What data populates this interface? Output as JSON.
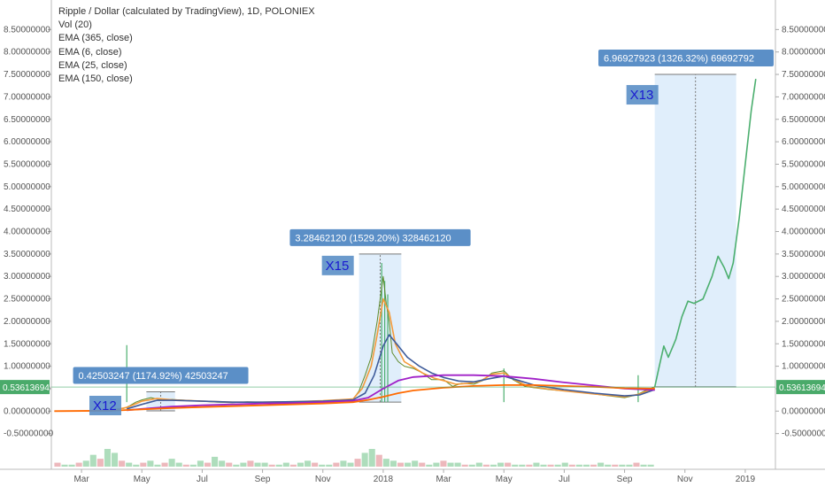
{
  "legend": {
    "title": "Ripple / Dollar (calculated by TradingView), 1D, POLONIEX",
    "lines": [
      "Vol (20)",
      "EMA (365, close)",
      "EMA (6, close)",
      "EMA (25, close)",
      "EMA (150, close)"
    ]
  },
  "colors": {
    "price": "#5e8a2a",
    "ema6": "#f49a3a",
    "ema25": "#3e5b9a",
    "ema150": "#a020c8",
    "ema365": "#ff6a00",
    "projection": "#4caf6f",
    "range_fill": "#d6e8fa",
    "callout_bg": "#5b8fc7",
    "label_bg": "#5b8fc7",
    "price_badge": "#4aaa6a"
  },
  "chart_data": {
    "type": "line",
    "ylim": [
      -1.0,
      9.0
    ],
    "y_ticks": [
      -0.5,
      0.0,
      0.5,
      1.0,
      1.5,
      2.0,
      2.5,
      3.0,
      3.5,
      4.0,
      4.5,
      5.0,
      5.5,
      6.0,
      6.5,
      7.0,
      7.5,
      8.0,
      8.5
    ],
    "y_tick_labels": [
      "-0.50000000",
      "0.00000000",
      "0.50000000",
      "1.00000000",
      "1.50000000",
      "2.00000000",
      "2.50000000",
      "3.00000000",
      "3.50000000",
      "4.00000000",
      "4.50000000",
      "5.00000000",
      "5.50000000",
      "6.00000000",
      "6.50000000",
      "7.00000000",
      "7.50000000",
      "8.00000000",
      "8.50000000"
    ],
    "x_ticks": [
      {
        "label": "Mar",
        "t": 0.0
      },
      {
        "label": "May",
        "t": 2.0
      },
      {
        "label": "Jul",
        "t": 4.0
      },
      {
        "label": "Sep",
        "t": 6.0
      },
      {
        "label": "Nov",
        "t": 8.0
      },
      {
        "label": "2018",
        "t": 10.0
      },
      {
        "label": "Mar",
        "t": 12.0
      },
      {
        "label": "May",
        "t": 14.0
      },
      {
        "label": "Jul",
        "t": 16.0
      },
      {
        "label": "Sep",
        "t": 18.0
      },
      {
        "label": "Nov",
        "t": 20.0
      },
      {
        "label": "2019",
        "t": 22.0
      }
    ],
    "xlim": [
      -1.0,
      23.0
    ],
    "last_price": 0.53613694,
    "last_price_label": "0.53613694",
    "series": [
      {
        "key": "price",
        "points": [
          [
            -0.9,
            0.0
          ],
          [
            0.5,
            0.005
          ],
          [
            0.9,
            0.01
          ],
          [
            1.0,
            0.02
          ],
          [
            1.2,
            0.05
          ],
          [
            1.4,
            0.06
          ],
          [
            1.6,
            0.12
          ],
          [
            1.8,
            0.2
          ],
          [
            2.0,
            0.25
          ],
          [
            2.3,
            0.3
          ],
          [
            2.7,
            0.24
          ],
          [
            3.0,
            0.26
          ],
          [
            3.5,
            0.24
          ],
          [
            4.0,
            0.22
          ],
          [
            4.5,
            0.2
          ],
          [
            5.0,
            0.19
          ],
          [
            5.5,
            0.21
          ],
          [
            6.0,
            0.2
          ],
          [
            6.5,
            0.21
          ],
          [
            7.0,
            0.2
          ],
          [
            7.5,
            0.22
          ],
          [
            8.0,
            0.23
          ],
          [
            8.5,
            0.24
          ],
          [
            9.0,
            0.26
          ],
          [
            9.2,
            0.45
          ],
          [
            9.4,
            0.8
          ],
          [
            9.6,
            1.2
          ],
          [
            9.8,
            2.0
          ],
          [
            9.9,
            2.5
          ],
          [
            10.0,
            3.0
          ],
          [
            10.1,
            2.4
          ],
          [
            10.2,
            2.0
          ],
          [
            10.3,
            1.3
          ],
          [
            10.5,
            1.1
          ],
          [
            10.7,
            1.0
          ],
          [
            11.0,
            0.95
          ],
          [
            11.3,
            0.85
          ],
          [
            11.6,
            0.7
          ],
          [
            12.0,
            0.7
          ],
          [
            12.3,
            0.55
          ],
          [
            12.6,
            0.62
          ],
          [
            13.0,
            0.6
          ],
          [
            13.3,
            0.68
          ],
          [
            13.6,
            0.85
          ],
          [
            14.0,
            0.9
          ],
          [
            14.3,
            0.7
          ],
          [
            14.7,
            0.55
          ],
          [
            15.0,
            0.52
          ],
          [
            15.5,
            0.48
          ],
          [
            16.0,
            0.45
          ],
          [
            16.5,
            0.42
          ],
          [
            17.0,
            0.38
          ],
          [
            17.5,
            0.34
          ],
          [
            18.0,
            0.3
          ],
          [
            18.4,
            0.36
          ],
          [
            18.7,
            0.46
          ],
          [
            19.0,
            0.54
          ]
        ]
      },
      {
        "key": "ema6",
        "points": [
          [
            1.0,
            0.02
          ],
          [
            1.5,
            0.08
          ],
          [
            2.0,
            0.22
          ],
          [
            2.5,
            0.28
          ],
          [
            3.0,
            0.25
          ],
          [
            4.0,
            0.22
          ],
          [
            5.0,
            0.2
          ],
          [
            6.0,
            0.2
          ],
          [
            7.0,
            0.21
          ],
          [
            8.0,
            0.23
          ],
          [
            9.0,
            0.27
          ],
          [
            9.3,
            0.5
          ],
          [
            9.6,
            1.0
          ],
          [
            9.8,
            1.7
          ],
          [
            10.0,
            2.5
          ],
          [
            10.2,
            2.2
          ],
          [
            10.4,
            1.5
          ],
          [
            10.7,
            1.1
          ],
          [
            11.0,
            0.98
          ],
          [
            11.3,
            0.85
          ],
          [
            11.7,
            0.73
          ],
          [
            12.0,
            0.68
          ],
          [
            12.4,
            0.6
          ],
          [
            12.8,
            0.62
          ],
          [
            13.2,
            0.66
          ],
          [
            13.6,
            0.82
          ],
          [
            14.0,
            0.85
          ],
          [
            14.4,
            0.68
          ],
          [
            14.8,
            0.55
          ],
          [
            15.5,
            0.49
          ],
          [
            16.0,
            0.45
          ],
          [
            17.0,
            0.38
          ],
          [
            18.0,
            0.32
          ],
          [
            18.5,
            0.38
          ],
          [
            19.0,
            0.52
          ]
        ]
      },
      {
        "key": "ema25",
        "points": [
          [
            1.5,
            0.05
          ],
          [
            2.0,
            0.15
          ],
          [
            2.5,
            0.24
          ],
          [
            3.0,
            0.24
          ],
          [
            4.0,
            0.22
          ],
          [
            5.0,
            0.2
          ],
          [
            6.0,
            0.2
          ],
          [
            7.0,
            0.21
          ],
          [
            8.0,
            0.22
          ],
          [
            9.0,
            0.25
          ],
          [
            9.4,
            0.4
          ],
          [
            9.7,
            0.8
          ],
          [
            10.0,
            1.45
          ],
          [
            10.2,
            1.7
          ],
          [
            10.5,
            1.45
          ],
          [
            10.8,
            1.2
          ],
          [
            11.2,
            1.0
          ],
          [
            11.6,
            0.85
          ],
          [
            12.0,
            0.75
          ],
          [
            12.5,
            0.67
          ],
          [
            13.0,
            0.65
          ],
          [
            13.5,
            0.72
          ],
          [
            14.0,
            0.78
          ],
          [
            14.5,
            0.68
          ],
          [
            15.0,
            0.58
          ],
          [
            16.0,
            0.48
          ],
          [
            17.0,
            0.4
          ],
          [
            18.0,
            0.34
          ],
          [
            18.5,
            0.36
          ],
          [
            19.0,
            0.48
          ]
        ]
      },
      {
        "key": "ema150",
        "points": [
          [
            1.5,
            0.02
          ],
          [
            2.0,
            0.05
          ],
          [
            3.0,
            0.1
          ],
          [
            4.0,
            0.13
          ],
          [
            5.0,
            0.15
          ],
          [
            6.0,
            0.17
          ],
          [
            7.0,
            0.18
          ],
          [
            8.0,
            0.2
          ],
          [
            9.0,
            0.23
          ],
          [
            9.5,
            0.3
          ],
          [
            10.0,
            0.5
          ],
          [
            10.5,
            0.68
          ],
          [
            11.0,
            0.76
          ],
          [
            12.0,
            0.8
          ],
          [
            13.0,
            0.8
          ],
          [
            14.0,
            0.78
          ],
          [
            15.0,
            0.72
          ],
          [
            16.0,
            0.64
          ],
          [
            17.0,
            0.57
          ],
          [
            18.0,
            0.5
          ],
          [
            19.0,
            0.47
          ]
        ]
      },
      {
        "key": "ema365",
        "points": [
          [
            -0.9,
            0.0
          ],
          [
            1.0,
            0.01
          ],
          [
            2.0,
            0.04
          ],
          [
            3.0,
            0.07
          ],
          [
            4.0,
            0.09
          ],
          [
            5.0,
            0.11
          ],
          [
            6.0,
            0.13
          ],
          [
            7.0,
            0.15
          ],
          [
            8.0,
            0.17
          ],
          [
            9.0,
            0.2
          ],
          [
            9.5,
            0.25
          ],
          [
            10.0,
            0.32
          ],
          [
            10.5,
            0.4
          ],
          [
            11.0,
            0.46
          ],
          [
            12.0,
            0.52
          ],
          [
            13.0,
            0.56
          ],
          [
            14.0,
            0.58
          ],
          [
            15.0,
            0.58
          ],
          [
            16.0,
            0.56
          ],
          [
            17.0,
            0.54
          ],
          [
            18.0,
            0.51
          ],
          [
            19.0,
            0.5
          ]
        ]
      },
      {
        "key": "projection",
        "points": [
          [
            19.0,
            0.54
          ],
          [
            19.15,
            1.0
          ],
          [
            19.3,
            1.45
          ],
          [
            19.45,
            1.2
          ],
          [
            19.7,
            1.6
          ],
          [
            19.9,
            2.1
          ],
          [
            20.1,
            2.45
          ],
          [
            20.3,
            2.4
          ],
          [
            20.6,
            2.5
          ],
          [
            20.9,
            3.0
          ],
          [
            21.1,
            3.45
          ],
          [
            21.3,
            3.2
          ],
          [
            21.45,
            2.95
          ],
          [
            21.6,
            3.3
          ],
          [
            21.8,
            4.3
          ],
          [
            22.0,
            5.5
          ],
          [
            22.2,
            6.7
          ],
          [
            22.35,
            7.4
          ]
        ]
      }
    ],
    "spikes": [
      [
        1.5,
        1.47
      ],
      [
        9.95,
        3.3
      ],
      [
        10.05,
        2.9
      ],
      [
        10.15,
        2.6
      ],
      [
        14.0,
        0.95
      ],
      [
        18.45,
        0.8
      ]
    ],
    "ranges": [
      {
        "t0": 2.15,
        "t1": 3.1,
        "y0": 0.005,
        "y1": 0.43,
        "callout": "0.42503247 (1174.92%) 42503247",
        "tag": "X12"
      },
      {
        "t0": 9.2,
        "t1": 10.6,
        "y0": 0.2,
        "y1": 3.5,
        "callout": "3.28462120 (1529.20%) 328462120",
        "tag": "X15"
      },
      {
        "t0": 19.0,
        "t1": 21.7,
        "y0": 0.54,
        "y1": 7.5,
        "callout": "6.96927923 (1326.32%) 69692792",
        "tag": "X13"
      }
    ],
    "volume": [
      2,
      1,
      1,
      2,
      3,
      6,
      4,
      9,
      7,
      3,
      2,
      1,
      2,
      3,
      1,
      2,
      4,
      2,
      1,
      1,
      3,
      2,
      5,
      3,
      2,
      1,
      2,
      3,
      2,
      2,
      1,
      1,
      2,
      1,
      2,
      3,
      2,
      1,
      1,
      2,
      3,
      2,
      4,
      7,
      9,
      6,
      4,
      3,
      2,
      2,
      3,
      2,
      1,
      2,
      3,
      2,
      2,
      1,
      1,
      2,
      1,
      1,
      2,
      2,
      1,
      1,
      1,
      2,
      1,
      1,
      1,
      2,
      1,
      1,
      1,
      1,
      2,
      1,
      1,
      1,
      1,
      2,
      1,
      1
    ]
  }
}
